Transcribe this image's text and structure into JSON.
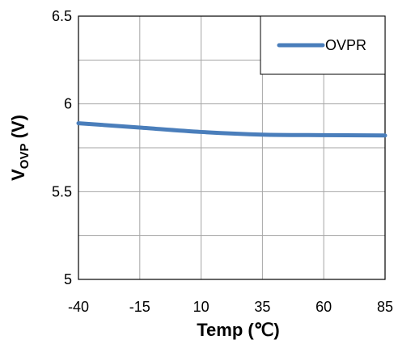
{
  "chart_data": {
    "type": "line",
    "title": "",
    "xlabel": "Temp (℃)",
    "ylabel": {
      "main": "V",
      "sub": "OVP",
      "unit": " (V)"
    },
    "x": [
      -40,
      -15,
      10,
      35,
      60,
      85
    ],
    "xlim": [
      -40,
      85
    ],
    "ylim": [
      5,
      6.5
    ],
    "xticks": [
      "-40",
      "-15",
      "10",
      "35",
      "60",
      "85"
    ],
    "yticks": [
      "5",
      "5.5",
      "6",
      "6.5"
    ],
    "grid": true,
    "legend_position": "top-right",
    "series": [
      {
        "name": "OVPR",
        "color": "#4A7EBB",
        "values": [
          5.89,
          5.865,
          5.84,
          5.825,
          5.822,
          5.82
        ]
      }
    ]
  }
}
